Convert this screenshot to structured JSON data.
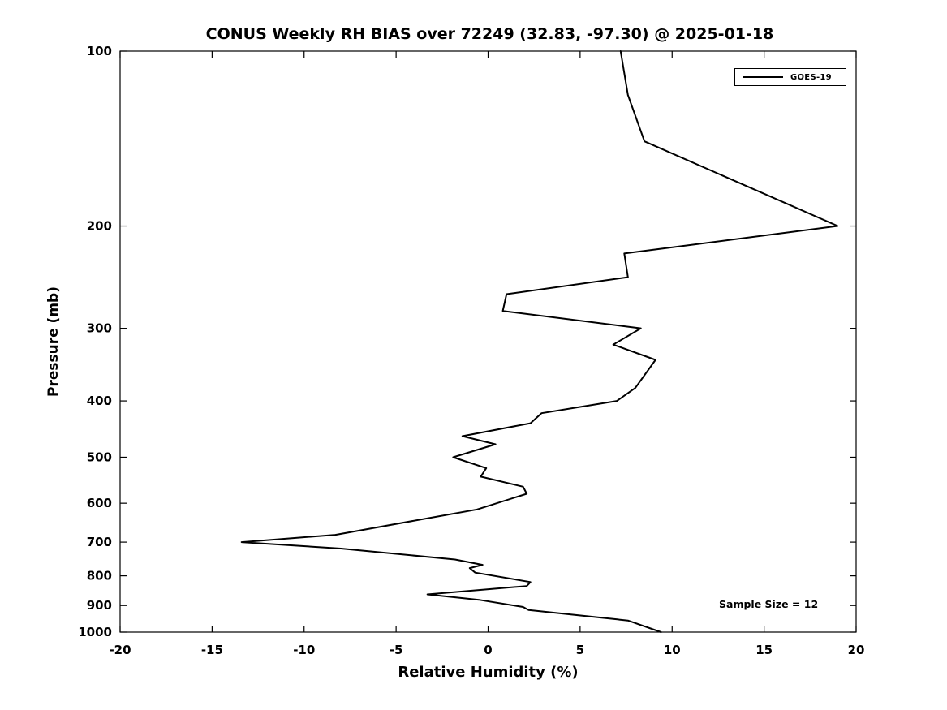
{
  "chart_data": {
    "type": "line",
    "title": "CONUS Weekly RH BIAS over 72249 (32.83, -97.30) @ 2025-01-18",
    "xlabel": "Relative Humidity (%)",
    "ylabel": "Pressure (mb)",
    "xlim": [
      -20,
      20
    ],
    "ylim": [
      100,
      1000
    ],
    "y_scale": "log10",
    "y_direction": "increasing-downward",
    "x_ticks": [
      -20,
      -15,
      -10,
      -5,
      0,
      5,
      10,
      15,
      20
    ],
    "y_ticks": [
      100,
      200,
      300,
      400,
      500,
      600,
      700,
      800,
      900,
      1000
    ],
    "grid": false,
    "legend_position": "top-right",
    "annotation": "Sample Size = 12",
    "series": [
      {
        "name": "GOES-19",
        "color": "#000000",
        "line_width": 2,
        "pressure_mb": [
          100,
          119,
          143,
          200,
          223,
          245,
          262,
          280,
          300,
          320,
          340,
          380,
          400,
          420,
          437,
          460,
          475,
          500,
          522,
          540,
          562,
          578,
          615,
          680,
          700,
          718,
          750,
          766,
          776,
          790,
          820,
          833,
          861,
          880,
          905,
          916,
          955,
          1000
        ],
        "rh_bias_pct": [
          7.2,
          7.6,
          8.5,
          19.0,
          7.4,
          7.6,
          1.0,
          0.8,
          8.3,
          6.8,
          9.1,
          8.0,
          7.0,
          2.9,
          2.3,
          -1.4,
          0.4,
          -1.9,
          -0.1,
          -0.4,
          1.9,
          2.1,
          -0.6,
          -8.3,
          -13.4,
          -8.0,
          -1.8,
          -0.3,
          -1.0,
          -0.7,
          2.3,
          2.1,
          -3.3,
          -0.5,
          1.9,
          2.2,
          7.6,
          9.4
        ]
      }
    ]
  }
}
